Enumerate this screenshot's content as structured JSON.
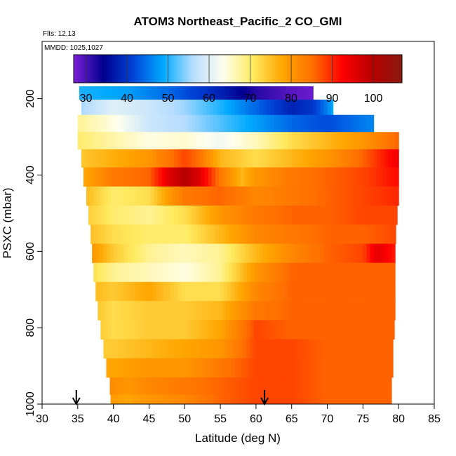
{
  "chart_data": {
    "type": "heatmap",
    "title": "ATOM3 Northeast_Pacific_2 CO_GMI",
    "annotations": [
      "Flts: 12,13",
      "MMDD: 1025,1027"
    ],
    "xlabel": "Latitude (deg N)",
    "ylabel": "PSXC (mbar)",
    "xlim": [
      30,
      85
    ],
    "ylim": [
      1000,
      50
    ],
    "y_reversed": true,
    "x_ticks": [
      "30",
      "35",
      "40",
      "45",
      "50",
      "55",
      "60",
      "65",
      "70",
      "75",
      "80",
      "85"
    ],
    "y_ticks": [
      "200",
      "400",
      "600",
      "800",
      "1000"
    ],
    "colorbar": {
      "range": [
        27,
        107
      ],
      "ticks": [
        "30",
        "40",
        "50",
        "60",
        "70",
        "80",
        "90",
        "100"
      ],
      "stops": [
        "#7a1fd6",
        "#00008f",
        "#0044d8",
        "#00aaff",
        "#b8ddff",
        "#ffffee",
        "#ffea60",
        "#ffa500",
        "#ff7000",
        "#ff0000",
        "#b80000",
        "#8a1a10"
      ]
    },
    "arrows_x": [
      34.8,
      61.2
    ],
    "grid": false,
    "legend": "colorbar-top",
    "levels": [
      {
        "p": 185,
        "lat0": 35.2,
        "lat1": 68.0,
        "knots": [
          [
            35,
            50
          ],
          [
            42,
            48
          ],
          [
            48,
            44
          ],
          [
            55,
            38
          ],
          [
            60,
            32
          ],
          [
            65,
            29
          ],
          [
            68,
            28
          ]
        ]
      },
      {
        "p": 220,
        "lat0": 35.5,
        "lat1": 70.8,
        "knots": [
          [
            35,
            55
          ],
          [
            40,
            60
          ],
          [
            45,
            58
          ],
          [
            50,
            55
          ],
          [
            55,
            50
          ],
          [
            60,
            44
          ],
          [
            65,
            38
          ],
          [
            68,
            40
          ],
          [
            70,
            46
          ],
          [
            71,
            50
          ]
        ]
      },
      {
        "p": 265,
        "lat0": 35.0,
        "lat1": 76.5,
        "knots": [
          [
            35,
            68
          ],
          [
            40,
            64
          ],
          [
            45,
            58
          ],
          [
            50,
            56
          ],
          [
            55,
            52
          ],
          [
            60,
            48
          ],
          [
            65,
            44
          ],
          [
            70,
            42
          ],
          [
            76,
            46
          ]
        ]
      },
      {
        "p": 310,
        "lat0": 35.0,
        "lat1": 80.0,
        "knots": [
          [
            35,
            70
          ],
          [
            40,
            67
          ],
          [
            45,
            64
          ],
          [
            50,
            65
          ],
          [
            55,
            62
          ],
          [
            60,
            66
          ],
          [
            65,
            72
          ],
          [
            70,
            76
          ],
          [
            75,
            80
          ],
          [
            80,
            86
          ]
        ]
      },
      {
        "p": 355,
        "lat0": 35.5,
        "lat1": 80.0,
        "knots": [
          [
            35,
            74
          ],
          [
            40,
            77
          ],
          [
            45,
            80
          ],
          [
            50,
            88
          ],
          [
            52,
            85
          ],
          [
            55,
            76
          ],
          [
            60,
            72
          ],
          [
            65,
            76
          ],
          [
            70,
            80
          ],
          [
            75,
            86
          ],
          [
            80,
            94
          ]
        ]
      },
      {
        "p": 405,
        "lat0": 35.8,
        "lat1": 80.0,
        "knots": [
          [
            36,
            78
          ],
          [
            40,
            84
          ],
          [
            45,
            86
          ],
          [
            48,
            96
          ],
          [
            50,
            100
          ],
          [
            52,
            96
          ],
          [
            55,
            84
          ],
          [
            58,
            76
          ],
          [
            60,
            80
          ],
          [
            65,
            84
          ],
          [
            70,
            86
          ],
          [
            75,
            88
          ],
          [
            80,
            92
          ]
        ]
      },
      {
        "p": 455,
        "lat0": 36.2,
        "lat1": 80.0,
        "knots": [
          [
            36,
            76
          ],
          [
            40,
            70
          ],
          [
            45,
            72
          ],
          [
            48,
            80
          ],
          [
            50,
            84
          ],
          [
            55,
            86
          ],
          [
            60,
            82
          ],
          [
            65,
            84
          ],
          [
            70,
            86
          ],
          [
            75,
            88
          ],
          [
            80,
            90
          ]
        ]
      },
      {
        "p": 505,
        "lat0": 36.5,
        "lat1": 79.8,
        "knots": [
          [
            36,
            74
          ],
          [
            40,
            70
          ],
          [
            45,
            68
          ],
          [
            50,
            72
          ],
          [
            55,
            80
          ],
          [
            60,
            84
          ],
          [
            65,
            86
          ],
          [
            70,
            86
          ],
          [
            75,
            88
          ],
          [
            80,
            88
          ]
        ]
      },
      {
        "p": 555,
        "lat0": 36.8,
        "lat1": 79.6,
        "knots": [
          [
            36,
            76
          ],
          [
            40,
            72
          ],
          [
            45,
            70
          ],
          [
            50,
            70
          ],
          [
            55,
            76
          ],
          [
            60,
            82
          ],
          [
            65,
            84
          ],
          [
            70,
            86
          ],
          [
            75,
            86
          ],
          [
            80,
            88
          ]
        ]
      },
      {
        "p": 605,
        "lat0": 37.0,
        "lat1": 79.5,
        "knots": [
          [
            37,
            80
          ],
          [
            40,
            74
          ],
          [
            45,
            68
          ],
          [
            50,
            66
          ],
          [
            55,
            68
          ],
          [
            60,
            76
          ],
          [
            65,
            82
          ],
          [
            70,
            86
          ],
          [
            75,
            88
          ],
          [
            77,
            95
          ],
          [
            80,
            90
          ]
        ]
      },
      {
        "p": 655,
        "lat0": 37.2,
        "lat1": 79.5,
        "knots": [
          [
            37,
            72
          ],
          [
            40,
            68
          ],
          [
            45,
            66
          ],
          [
            50,
            64
          ],
          [
            55,
            68
          ],
          [
            60,
            80
          ],
          [
            65,
            86
          ],
          [
            70,
            86
          ],
          [
            75,
            86
          ],
          [
            80,
            86
          ]
        ]
      },
      {
        "p": 705,
        "lat0": 37.5,
        "lat1": 79.5,
        "knots": [
          [
            37,
            76
          ],
          [
            40,
            74
          ],
          [
            45,
            78
          ],
          [
            50,
            72
          ],
          [
            55,
            72
          ],
          [
            60,
            82
          ],
          [
            65,
            86
          ],
          [
            70,
            86
          ],
          [
            75,
            86
          ],
          [
            80,
            86
          ]
        ]
      },
      {
        "p": 755,
        "lat0": 37.8,
        "lat1": 79.5,
        "knots": [
          [
            38,
            74
          ],
          [
            40,
            72
          ],
          [
            45,
            74
          ],
          [
            50,
            74
          ],
          [
            55,
            76
          ],
          [
            60,
            84
          ],
          [
            65,
            86
          ],
          [
            70,
            86
          ],
          [
            75,
            86
          ],
          [
            80,
            86
          ]
        ]
      },
      {
        "p": 805,
        "lat0": 38.2,
        "lat1": 79.4,
        "knots": [
          [
            38,
            74
          ],
          [
            40,
            72
          ],
          [
            45,
            74
          ],
          [
            50,
            74
          ],
          [
            55,
            78
          ],
          [
            60,
            88
          ],
          [
            65,
            86
          ],
          [
            70,
            86
          ],
          [
            75,
            86
          ],
          [
            80,
            86
          ]
        ]
      },
      {
        "p": 855,
        "lat0": 38.6,
        "lat1": 79.2,
        "knots": [
          [
            38,
            74
          ],
          [
            40,
            74
          ],
          [
            45,
            76
          ],
          [
            50,
            78
          ],
          [
            55,
            80
          ],
          [
            60,
            88
          ],
          [
            65,
            88
          ],
          [
            70,
            86
          ],
          [
            75,
            86
          ],
          [
            80,
            86
          ]
        ]
      },
      {
        "p": 905,
        "lat0": 39.0,
        "lat1": 79.2,
        "knots": [
          [
            39,
            78
          ],
          [
            40,
            78
          ],
          [
            45,
            80
          ],
          [
            50,
            80
          ],
          [
            55,
            84
          ],
          [
            60,
            88
          ],
          [
            65,
            88
          ],
          [
            70,
            86
          ],
          [
            75,
            86
          ],
          [
            80,
            86
          ]
        ]
      },
      {
        "p": 955,
        "lat0": 39.5,
        "lat1": 79.0,
        "knots": [
          [
            39,
            82
          ],
          [
            42,
            80
          ],
          [
            45,
            82
          ],
          [
            50,
            84
          ],
          [
            55,
            86
          ],
          [
            60,
            88
          ],
          [
            65,
            88
          ],
          [
            70,
            86
          ],
          [
            75,
            86
          ],
          [
            80,
            86
          ]
        ]
      },
      {
        "p": 995,
        "lat0": 39.6,
        "lat1": 79.0,
        "knots": [
          [
            39,
            80
          ],
          [
            42,
            78
          ],
          [
            45,
            80
          ],
          [
            50,
            82
          ],
          [
            55,
            86
          ],
          [
            60,
            88
          ],
          [
            65,
            88
          ],
          [
            70,
            86
          ],
          [
            75,
            86
          ],
          [
            80,
            86
          ]
        ]
      }
    ]
  }
}
